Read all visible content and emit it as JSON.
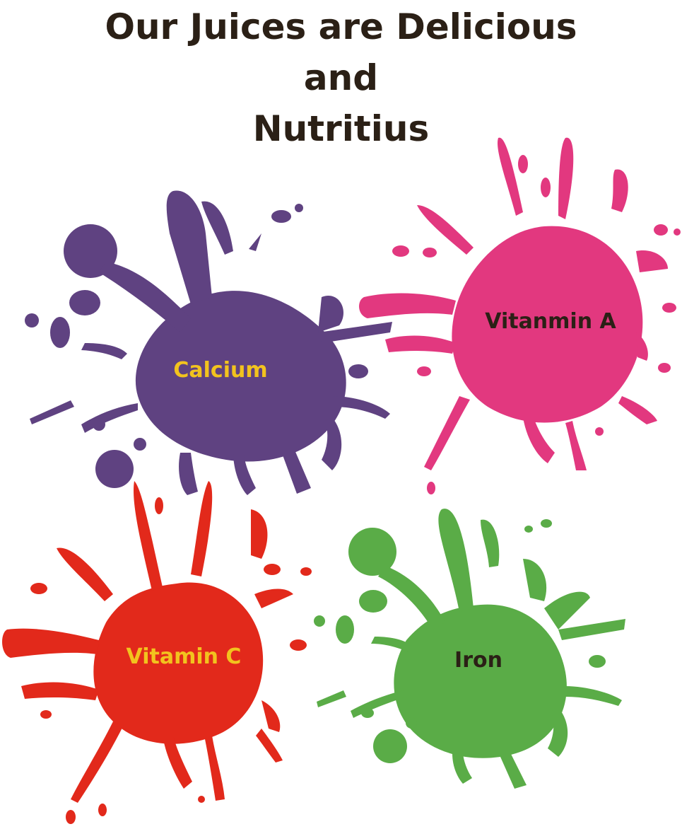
{
  "title": {
    "line1": "Our Juices are Delicious",
    "line2": "and",
    "line3": "Nutritius"
  },
  "splats": [
    {
      "label": "Calcium",
      "splat_color": "#5f4281",
      "text_color": "#f2c31e"
    },
    {
      "label": "Vitanmin A",
      "splat_color": "#e2387f",
      "text_color": "#2b2016"
    },
    {
      "label": "Vitamin C",
      "splat_color": "#e2291b",
      "text_color": "#f2c31e"
    },
    {
      "label": "Iron",
      "splat_color": "#5aac47",
      "text_color": "#2b2016"
    }
  ]
}
